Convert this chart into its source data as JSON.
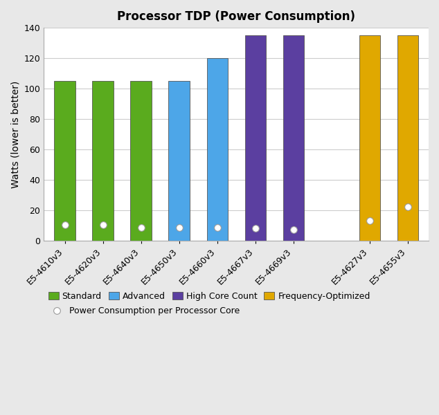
{
  "title": "Processor TDP (Power Consumption)",
  "ylabel": "Watts (lower is better)",
  "ylim": [
    0,
    140
  ],
  "yticks": [
    0,
    20,
    40,
    60,
    80,
    100,
    120,
    140
  ],
  "categories": [
    "E5-4610v3",
    "E5-4620v3",
    "E5-4640v3",
    "E5-4650v3",
    "E5-4660v3",
    "E5-4667v3",
    "E5-4669v3",
    "E5-4627v3",
    "E5-4655v3"
  ],
  "tdp_values": [
    105,
    105,
    105,
    105,
    120,
    135,
    135,
    135,
    135
  ],
  "per_core_values": [
    10.5,
    10.5,
    8.75,
    8.75,
    8.57,
    8.44,
    7.5,
    13.5,
    22.5
  ],
  "bar_colors": [
    "#5aab1e",
    "#5aab1e",
    "#5aab1e",
    "#4da6e8",
    "#4da6e8",
    "#5b3fa0",
    "#5b3fa0",
    "#e0a800",
    "#e0a800"
  ],
  "legend_labels": [
    "Standard",
    "Advanced",
    "High Core Count",
    "Frequency-Optimized"
  ],
  "legend_colors": [
    "#5aab1e",
    "#4da6e8",
    "#5b3fa0",
    "#e0a800"
  ],
  "figure_bg": "#e8e8e8",
  "plot_bg": "#ffffff",
  "grid_color": "#cccccc",
  "bar_edge_color": "#555555",
  "title_fontsize": 12,
  "axis_label_fontsize": 10,
  "tick_fontsize": 9,
  "legend_fontsize": 9
}
